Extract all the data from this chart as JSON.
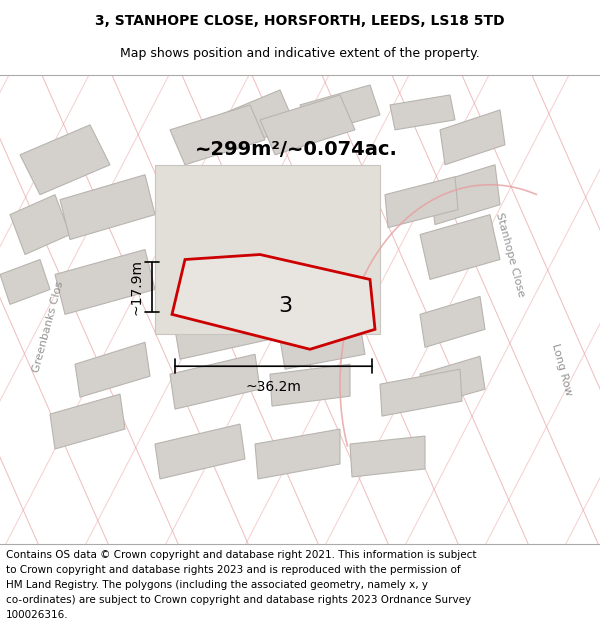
{
  "title_line1": "3, STANHOPE CLOSE, HORSFORTH, LEEDS, LS18 5TD",
  "title_line2": "Map shows position and indicative extent of the property.",
  "area_text": "~299m²/~0.074ac.",
  "width_label": "~36.2m",
  "height_label": "~17.9m",
  "number_label": "3",
  "footer_lines": [
    "Contains OS data © Crown copyright and database right 2021. This information is subject",
    "to Crown copyright and database rights 2023 and is reproduced with the permission of",
    "HM Land Registry. The polygons (including the associated geometry, namely x, y",
    "co-ordinates) are subject to Crown copyright and database rights 2023 Ordnance Survey",
    "100026316."
  ],
  "map_bg": "#ede9e4",
  "building_color": "#d4d0cb",
  "building_edge": "#b8b4af",
  "road_line_color": "#e8a0a0",
  "highlight_color": "#cc0000",
  "highlight_fill": "#e8e4df",
  "title_fontsize": 10,
  "subtitle_fontsize": 9,
  "footer_fontsize": 7.5,
  "stanhope_close_label": "Stanhope Close",
  "greenbanks_close_label": "Greenbanks Clos",
  "long_row_label": "Long Row"
}
